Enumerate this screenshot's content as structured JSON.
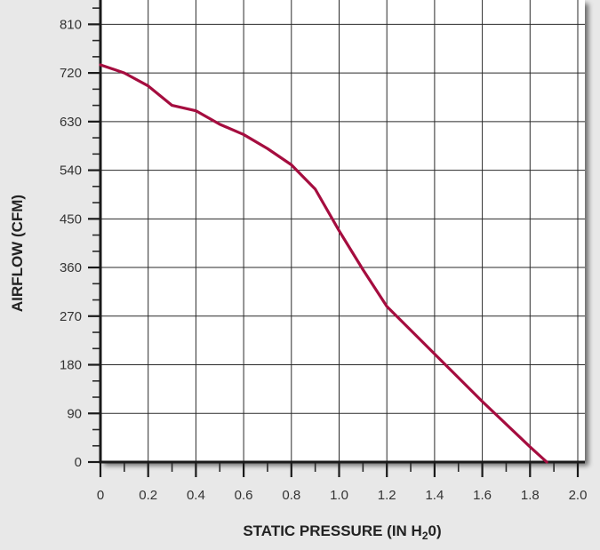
{
  "chart_data": {
    "type": "line",
    "title": "",
    "xlabel": "STATIC PRESSURE (IN H",
    "xlabel_sub": "2",
    "xlabel_end": "0)",
    "ylabel": "AIRFLOW (CFM)",
    "xlim": [
      0,
      2.0
    ],
    "ylim": [
      0,
      855
    ],
    "grid": true,
    "x_ticks": [
      0,
      0.2,
      0.4,
      0.6,
      0.8,
      1.0,
      1.2,
      1.4,
      1.6,
      1.8,
      2.0
    ],
    "x_tick_labels": [
      "0",
      "0.2",
      "0.4",
      "0.6",
      "0.8",
      "1.0",
      "1.2",
      "1.4",
      "1.6",
      "1.8",
      "2.0"
    ],
    "y_ticks": [
      0,
      90,
      180,
      270,
      360,
      450,
      540,
      630,
      720,
      810
    ],
    "y_tick_labels": [
      "0",
      "90",
      "180",
      "270",
      "360",
      "450",
      "540",
      "630",
      "720",
      "810"
    ],
    "series": [
      {
        "color": "#a50d3f",
        "x": [
          0,
          0.1,
          0.2,
          0.3,
          0.4,
          0.5,
          0.6,
          0.7,
          0.8,
          0.9,
          1.0,
          1.1,
          1.2,
          1.4,
          1.6,
          1.8,
          1.87
        ],
        "y": [
          735,
          720,
          696,
          660,
          650,
          625,
          606,
          580,
          550,
          505,
          428,
          356,
          288,
          200,
          112,
          28,
          0
        ]
      }
    ],
    "colors": {
      "background": "#e8e8e8",
      "plot_background": "#ffffff",
      "grid": "#2a2a2a",
      "line": "#a50d3f"
    }
  }
}
